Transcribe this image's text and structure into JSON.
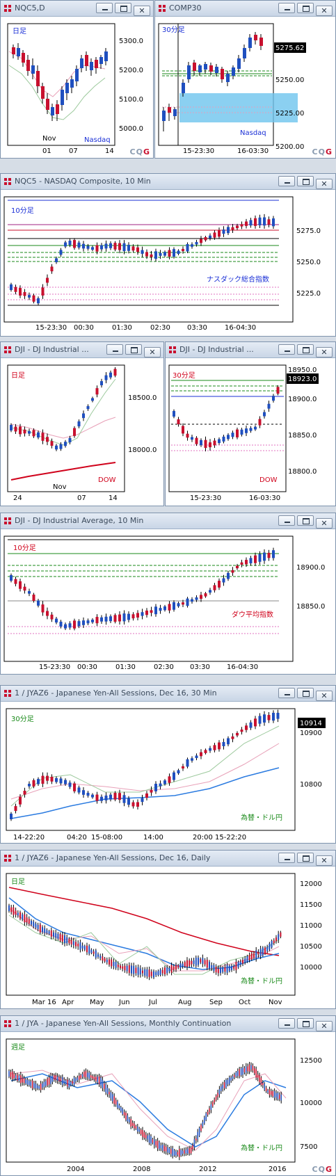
{
  "windows": {
    "w1": {
      "title": "NQC5,D",
      "label": "日足",
      "label2": "Nasdaq",
      "yticks": [
        "5300.0",
        "5200.0",
        "5100.0",
        "5000.0"
      ],
      "xticks": [
        "01",
        "07",
        "14"
      ],
      "xmonth": "Nov"
    },
    "w2": {
      "title": "COMP30",
      "label": "30分足",
      "label2": "Nasdaq",
      "price": "5275.62",
      "yticks": [
        "5250.00",
        "5225.00",
        "5200.00"
      ],
      "xticks": [
        "15-23:30",
        "16-03:30"
      ]
    },
    "w3": {
      "title": "NQC5 - NASDAQ Composite, 10 Min",
      "label": "10分足",
      "label2": "ナスダック総合指数",
      "yticks": [
        "5275.0",
        "5250.0",
        "5225.0"
      ],
      "xticks": [
        "15-23:30",
        "00:30",
        "01:30",
        "02:30",
        "03:30",
        "16-04:30"
      ]
    },
    "w4": {
      "title": "DJI - DJ Industrial ...",
      "label": "日足",
      "label2": "DOW",
      "yticks": [
        "18500.0",
        "18000.0"
      ],
      "xticks": [
        "24",
        "07",
        "14"
      ],
      "xmonth": "Nov"
    },
    "w5": {
      "title": "DJI - DJ Industrial ...",
      "label": "30分足",
      "label2": "DOW",
      "price": "18923.0",
      "yticks": [
        "18950.0",
        "18900.0",
        "18850.0",
        "18800.0"
      ],
      "xticks": [
        "15-23:30",
        "16-03:30"
      ]
    },
    "w6": {
      "title": "DJI - DJ Industrial Average, 10 Min",
      "label": "10分足",
      "label2": "ダウ平均指数",
      "yticks": [
        "18900.0",
        "18850.0"
      ],
      "xticks": [
        "15-23:30",
        "00:30",
        "01:30",
        "02:30",
        "03:30",
        "16-04:30"
      ]
    },
    "w7": {
      "title": "1 / JYAZ6 - Japanese Yen-All Sessions, Dec 16, 30 Min",
      "label": "30分足",
      "label2": "為替・ドル円",
      "price": "10914",
      "yticks": [
        "10900",
        "10800"
      ],
      "xticks": [
        "14-22:20",
        "04:20",
        "15-08:00",
        "14:00",
        "20:00",
        "15-22:20"
      ]
    },
    "w8": {
      "title": "1 / JYAZ6 - Japanese Yen-All Sessions, Dec 16, Daily",
      "label": "日足",
      "label2": "為替・ドル円",
      "yticks": [
        "12000",
        "11500",
        "11000",
        "10500",
        "10000"
      ],
      "xticks": [
        "Mar 16",
        "Apr",
        "May",
        "Jun",
        "Jul",
        "Aug",
        "Sep",
        "Oct",
        "Nov"
      ]
    },
    "w9": {
      "title": "1 / JYA - Japanese Yen-All Sessions, Monthly Continuation",
      "label": "週足",
      "label2": "為替・ドル円",
      "yticks": [
        "12500",
        "10000",
        "7500"
      ],
      "xticks": [
        "2004",
        "2008",
        "2012",
        "2016"
      ]
    }
  },
  "brand": {
    "cqg_a": "CQ",
    "cqg_b": "G"
  },
  "colors": {
    "up": "#1f4fbf",
    "down": "#c8102e",
    "titlebar": "#c9d6e6",
    "label_blue": "#1a2fd6",
    "label_red": "#d0021b",
    "label_green": "#1a8a1a"
  }
}
